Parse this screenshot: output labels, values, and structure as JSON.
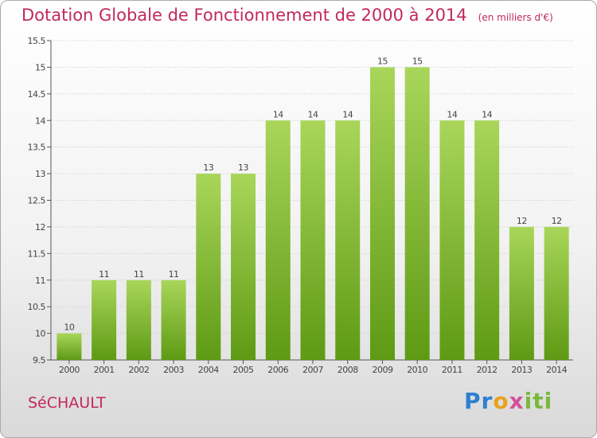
{
  "header": {
    "title": "Dotation Globale de Fonctionnement de 2000 à 2014",
    "unit": "(en milliers d'€)"
  },
  "footer": {
    "commune": "SéCHAULT",
    "brand": "Proxiti",
    "brand_parts": [
      "Pr",
      "o",
      "x",
      "iti"
    ]
  },
  "colors": {
    "title": "#c1285c",
    "bar_light": "#a9d65a",
    "bar_dark": "#5e9a14",
    "grid": "#c8c8c8"
  },
  "chart_data": {
    "type": "bar",
    "title": "Dotation Globale de Fonctionnement de 2000 à 2014",
    "subtitle": "(en milliers d'€)",
    "xlabel": "",
    "ylabel": "",
    "categories": [
      "2000",
      "2001",
      "2002",
      "2003",
      "2004",
      "2005",
      "2006",
      "2007",
      "2008",
      "2009",
      "2010",
      "2011",
      "2012",
      "2013",
      "2014"
    ],
    "values": [
      10,
      11,
      11,
      11,
      13,
      13,
      14,
      14,
      14,
      15,
      15,
      14,
      14,
      12,
      12
    ],
    "data_labels": [
      "10",
      "11",
      "11",
      "11",
      "13",
      "13",
      "14",
      "14",
      "14",
      "15",
      "15",
      "14",
      "14",
      "12",
      "12"
    ],
    "ylim": [
      9.5,
      15.5
    ],
    "yticks": [
      9.5,
      10,
      10.5,
      11,
      11.5,
      12,
      12.5,
      13,
      13.5,
      14,
      14.5,
      15,
      15.5
    ],
    "ytick_labels": [
      "9.5",
      "10",
      "10.5",
      "11",
      "11.5",
      "12",
      "12.5",
      "13",
      "13.5",
      "14",
      "14.5",
      "15",
      "15.5"
    ],
    "grid": true,
    "legend": false
  }
}
